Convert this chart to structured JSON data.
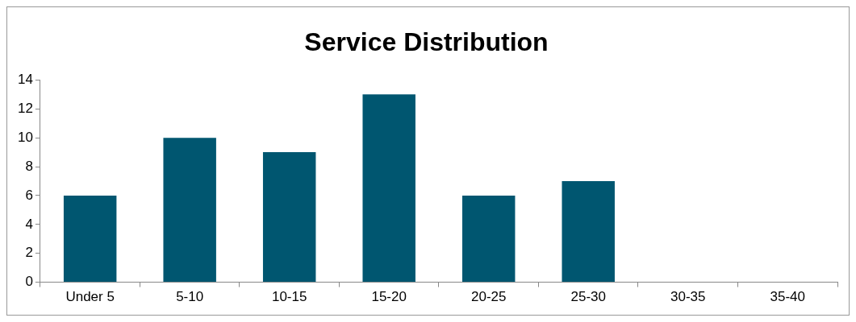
{
  "chart_data": {
    "type": "bar",
    "title": "Service Distribution",
    "categories": [
      "Under 5",
      "5-10",
      "10-15",
      "15-20",
      "20-25",
      "25-30",
      "30-35",
      "35-40"
    ],
    "values": [
      6,
      10,
      9,
      13,
      6,
      7,
      0,
      0
    ],
    "color": "#005670",
    "ylim": [
      0,
      14
    ],
    "yticks": [
      0,
      2,
      4,
      6,
      8,
      10,
      12,
      14
    ],
    "grid": false,
    "legend": false
  }
}
